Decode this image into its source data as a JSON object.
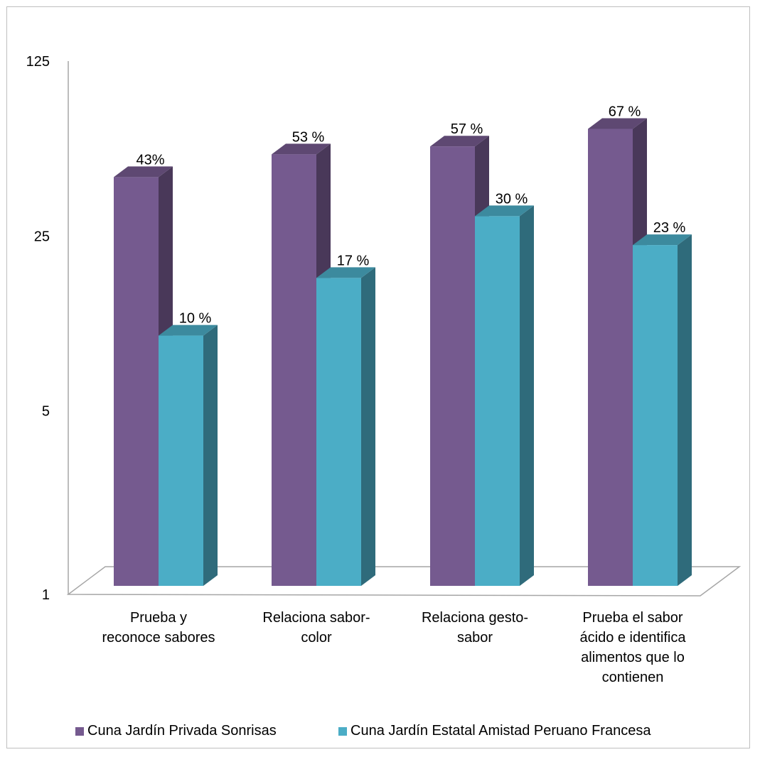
{
  "chart_data": {
    "type": "bar",
    "title": "",
    "xlabel": "",
    "ylabel": "",
    "y_scale": "log",
    "ylim": [
      1,
      125
    ],
    "y_ticks": [
      "1",
      "5",
      "25",
      "125"
    ],
    "categories": [
      "Prueba y reconoce sabores",
      "Relaciona sabor-color",
      "Relaciona gesto-sabor",
      "Prueba el sabor ácido e identifica alimentos que lo contienen"
    ],
    "categories_display": [
      [
        "Prueba y",
        "reconoce sabores"
      ],
      [
        "Relaciona sabor-",
        "color"
      ],
      [
        "Relaciona gesto-",
        "sabor"
      ],
      [
        "Prueba el sabor",
        "ácido e identifica",
        "alimentos que lo",
        "contienen"
      ]
    ],
    "series": [
      {
        "name": "Cuna Jardín Privada Sonrisas",
        "values": [
          43,
          53,
          57,
          67
        ],
        "labels": [
          "43%",
          "53 %",
          "57 %",
          "67 %"
        ],
        "color": "#755a8f"
      },
      {
        "name": "Cuna Jardín Estatal Amistad Peruano Francesa",
        "values": [
          10,
          17,
          30,
          23
        ],
        "labels": [
          "10 %",
          "17 %",
          "30 %",
          "23 %"
        ],
        "color": "#4badc6"
      }
    ],
    "legend_position": "bottom",
    "grid": false,
    "style": "3d-column"
  }
}
